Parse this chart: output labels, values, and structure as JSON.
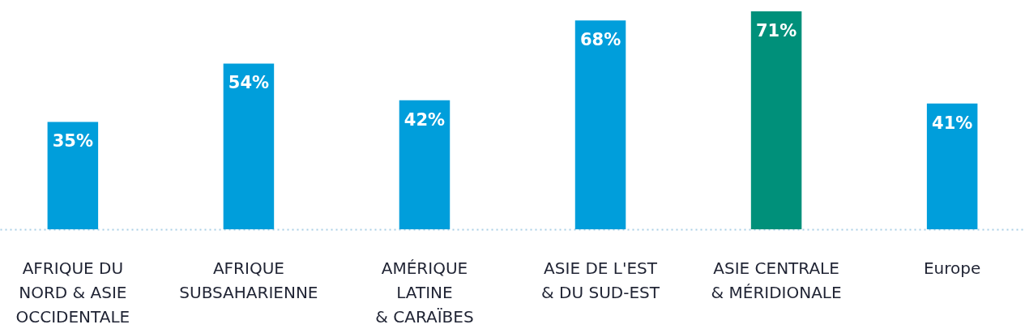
{
  "chart_data": {
    "type": "bar",
    "categories": [
      "AFRIQUE DU\nNORD & ASIE\nOCCIDENTALE",
      "AFRIQUE\nSUBSAHARIENNE",
      "AMÉRIQUE\nLATINE\n& CARAÏBES",
      "ASIE DE L'EST\n& DU SUD-EST",
      "ASIE CENTRALE\n& MÉRIDIONALE",
      "Europe"
    ],
    "values": [
      35,
      54,
      42,
      68,
      71,
      41
    ],
    "value_labels": [
      "35%",
      "54%",
      "42%",
      "68%",
      "71%",
      "41%"
    ],
    "colors": [
      "#009edb",
      "#009edb",
      "#009edb",
      "#009edb",
      "#00907a",
      "#009edb"
    ]
  }
}
